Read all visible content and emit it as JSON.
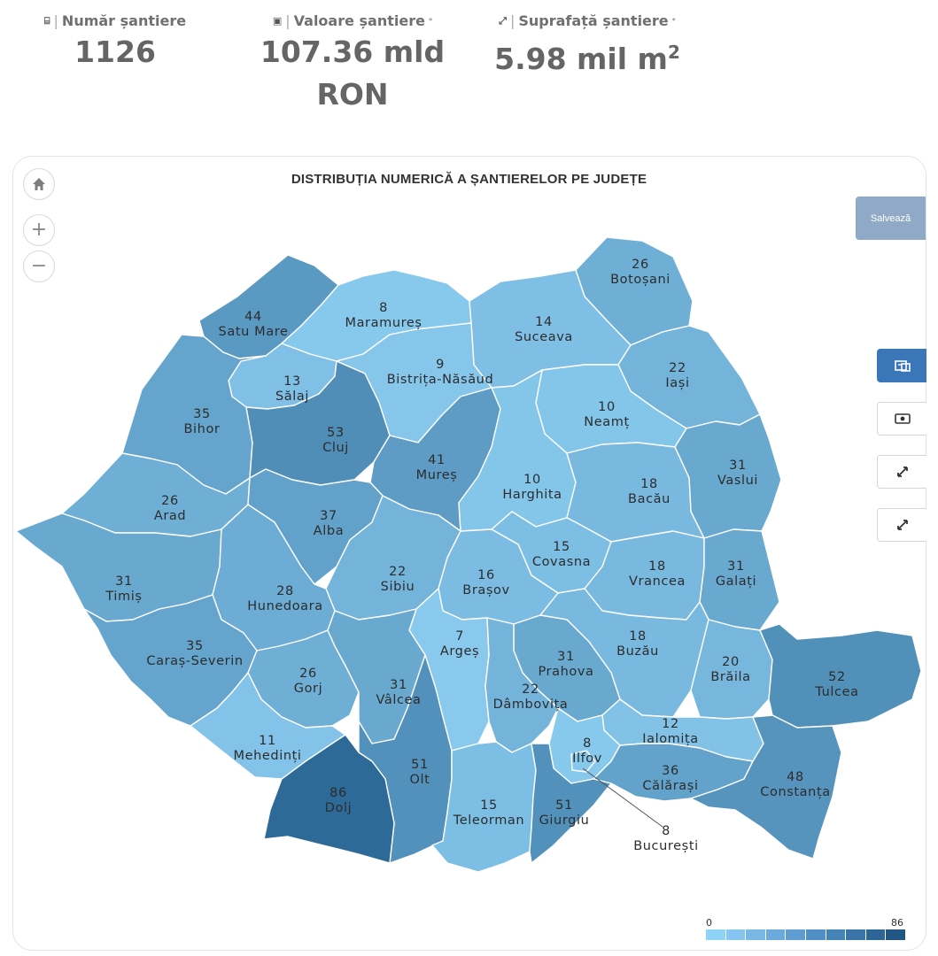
{
  "stats": {
    "count": {
      "icon": "building-icon",
      "label": "Număr șantiere",
      "value": "1126"
    },
    "value": {
      "icon": "money-icon",
      "label": "Valoare șantiere",
      "note": "*",
      "value_line1": "107.36 mld",
      "value_line2": "RON"
    },
    "area": {
      "icon": "expand-icon",
      "label": "Suprafață șantiere",
      "note": "*",
      "value": "5.98 mil m",
      "value_sup": "2"
    }
  },
  "map": {
    "title": "DISTRIBUȚIA NUMERICĂ A ȘANTIERELOR PE JUDEȚE",
    "save_label": "Salvează",
    "zoom_in": "+",
    "zoom_out": "−",
    "legend": {
      "min": "0",
      "max": "86",
      "colors": [
        "#90d3f9",
        "#84c6f0",
        "#77b8e6",
        "#6aaadc",
        "#5d9dd2",
        "#5190c6",
        "#4582b8",
        "#3a74a8",
        "#2e6597",
        "#225684"
      ]
    }
  },
  "chart_data": {
    "type": "choropleth",
    "title": "DISTRIBUȚIA NUMERICĂ A ȘANTIERELOR PE JUDEȚE",
    "range": [
      0,
      86
    ],
    "counties": [
      {
        "name": "Satu Mare",
        "value": 44
      },
      {
        "name": "Maramureș",
        "value": 8
      },
      {
        "name": "Botoșani",
        "value": 26
      },
      {
        "name": "Suceava",
        "value": 14
      },
      {
        "name": "Sălaj",
        "value": 13
      },
      {
        "name": "Bistrița-Năsăud",
        "value": 9
      },
      {
        "name": "Iași",
        "value": 22
      },
      {
        "name": "Bihor",
        "value": 35
      },
      {
        "name": "Cluj",
        "value": 53
      },
      {
        "name": "Neamț",
        "value": 10
      },
      {
        "name": "Mureș",
        "value": 41
      },
      {
        "name": "Vaslui",
        "value": 31
      },
      {
        "name": "Arad",
        "value": 26
      },
      {
        "name": "Harghita",
        "value": 10
      },
      {
        "name": "Bacău",
        "value": 18
      },
      {
        "name": "Alba",
        "value": 37
      },
      {
        "name": "Covasna",
        "value": 15
      },
      {
        "name": "Vrancea",
        "value": 18
      },
      {
        "name": "Galați",
        "value": 31
      },
      {
        "name": "Timiș",
        "value": 31
      },
      {
        "name": "Sibiu",
        "value": 22
      },
      {
        "name": "Brașov",
        "value": 16
      },
      {
        "name": "Hunedoara",
        "value": 28
      },
      {
        "name": "Argeș",
        "value": 7
      },
      {
        "name": "Buzău",
        "value": 18
      },
      {
        "name": "Prahova",
        "value": 31
      },
      {
        "name": "Caraș-Severin",
        "value": 35
      },
      {
        "name": "Brăila",
        "value": 20
      },
      {
        "name": "Tulcea",
        "value": 52
      },
      {
        "name": "Gorj",
        "value": 26
      },
      {
        "name": "Vâlcea",
        "value": 31
      },
      {
        "name": "Dâmbovița",
        "value": 22
      },
      {
        "name": "Ialomița",
        "value": 12
      },
      {
        "name": "Mehedinți",
        "value": 11
      },
      {
        "name": "Ilfov",
        "value": 8
      },
      {
        "name": "Călărași",
        "value": 36
      },
      {
        "name": "Olt",
        "value": 51
      },
      {
        "name": "Constanța",
        "value": 48
      },
      {
        "name": "Dolj",
        "value": 86
      },
      {
        "name": "Teleorman",
        "value": 15
      },
      {
        "name": "Giurgiu",
        "value": 51
      },
      {
        "name": "București",
        "value": 8
      }
    ]
  }
}
